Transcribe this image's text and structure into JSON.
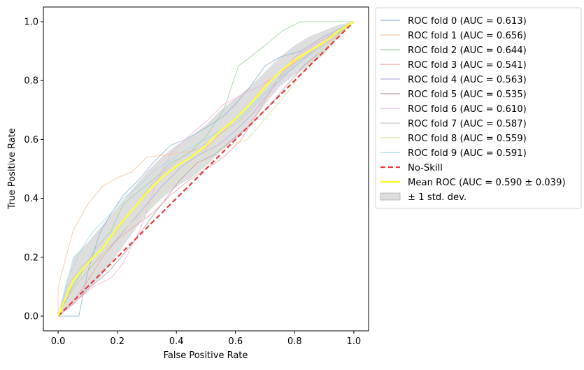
{
  "chart_data": {
    "type": "line",
    "title": "",
    "xlabel": "False Positive Rate",
    "ylabel": "True Positive Rate",
    "xlim": [
      -0.05,
      1.05
    ],
    "ylim": [
      -0.05,
      1.05
    ],
    "xticks": [
      0.0,
      0.2,
      0.4,
      0.6,
      0.8,
      1.0
    ],
    "yticks": [
      0.0,
      0.2,
      0.4,
      0.6,
      0.8,
      1.0
    ],
    "tick_labels_x": [
      "0.0",
      "0.2",
      "0.4",
      "0.6",
      "0.8",
      "1.0"
    ],
    "tick_labels_y": [
      "0.0",
      "0.2",
      "0.4",
      "0.6",
      "0.8",
      "1.0"
    ],
    "grid": false,
    "legend_position": "outside-right",
    "series": [
      {
        "name": "ROC fold 0 (AUC = 0.613)",
        "color": "#8fb6d6",
        "x": [
          0,
          0.02,
          0.07,
          0.1,
          0.14,
          0.18,
          0.22,
          0.27,
          0.32,
          0.38,
          0.43,
          0.5,
          0.56,
          0.6,
          0.65,
          0.7,
          0.75,
          0.82,
          0.9,
          1.0
        ],
        "y": [
          0,
          0,
          0,
          0.15,
          0.28,
          0.35,
          0.41,
          0.46,
          0.52,
          0.58,
          0.6,
          0.64,
          0.68,
          0.72,
          0.78,
          0.85,
          0.88,
          0.9,
          0.95,
          1.0
        ]
      },
      {
        "name": "ROC fold 1 (AUC = 0.656)",
        "color": "#fbc29a",
        "x": [
          0,
          0.0,
          0.05,
          0.1,
          0.15,
          0.2,
          0.25,
          0.3,
          0.38,
          0.45,
          0.5,
          0.55,
          0.6,
          0.65,
          0.7,
          0.78,
          0.85,
          0.93,
          1.0
        ],
        "y": [
          0,
          0.1,
          0.29,
          0.38,
          0.44,
          0.47,
          0.49,
          0.54,
          0.55,
          0.56,
          0.57,
          0.62,
          0.67,
          0.72,
          0.79,
          0.85,
          0.9,
          0.94,
          1.0
        ]
      },
      {
        "name": "ROC fold 2 (AUC = 0.644)",
        "color": "#9ed39e",
        "x": [
          0,
          0.03,
          0.08,
          0.12,
          0.18,
          0.22,
          0.28,
          0.33,
          0.38,
          0.44,
          0.5,
          0.56,
          0.61,
          0.65,
          0.7,
          0.76,
          0.82,
          0.88,
          1.0
        ],
        "y": [
          0,
          0.07,
          0.15,
          0.22,
          0.29,
          0.38,
          0.43,
          0.47,
          0.52,
          0.55,
          0.61,
          0.7,
          0.85,
          0.88,
          0.92,
          0.97,
          1.0,
          1.0,
          1.0
        ]
      },
      {
        "name": "ROC fold 3 (AUC = 0.541)",
        "color": "#f3a3a3",
        "x": [
          0,
          0.05,
          0.1,
          0.15,
          0.2,
          0.25,
          0.32,
          0.38,
          0.44,
          0.5,
          0.56,
          0.62,
          0.68,
          0.74,
          0.8,
          0.88,
          0.95,
          1.0
        ],
        "y": [
          0,
          0.05,
          0.12,
          0.2,
          0.26,
          0.3,
          0.35,
          0.41,
          0.46,
          0.5,
          0.54,
          0.6,
          0.7,
          0.8,
          0.88,
          0.93,
          0.97,
          1.0
        ]
      },
      {
        "name": "ROC fold 4 (AUC = 0.563)",
        "color": "#b5b0e0",
        "x": [
          0,
          0.04,
          0.09,
          0.14,
          0.19,
          0.24,
          0.3,
          0.35,
          0.42,
          0.48,
          0.54,
          0.6,
          0.66,
          0.72,
          0.78,
          0.85,
          0.92,
          1.0
        ],
        "y": [
          0,
          0.08,
          0.14,
          0.2,
          0.25,
          0.31,
          0.38,
          0.44,
          0.51,
          0.55,
          0.58,
          0.63,
          0.69,
          0.77,
          0.83,
          0.89,
          0.95,
          1.0
        ]
      },
      {
        "name": "ROC fold 5 (AUC = 0.535)",
        "color": "#b5a0a8",
        "x": [
          0,
          0.05,
          0.11,
          0.17,
          0.23,
          0.29,
          0.35,
          0.41,
          0.47,
          0.53,
          0.59,
          0.65,
          0.71,
          0.77,
          0.83,
          0.89,
          0.95,
          1.0
        ],
        "y": [
          0,
          0.04,
          0.1,
          0.15,
          0.22,
          0.3,
          0.38,
          0.46,
          0.52,
          0.55,
          0.6,
          0.65,
          0.71,
          0.78,
          0.85,
          0.9,
          0.96,
          1.0
        ]
      },
      {
        "name": "ROC fold 6 (AUC = 0.610)",
        "color": "#f2b5da",
        "x": [
          0,
          0.06,
          0.12,
          0.18,
          0.22,
          0.28,
          0.33,
          0.38,
          0.44,
          0.5,
          0.56,
          0.62,
          0.68,
          0.74,
          0.8,
          0.87,
          0.94,
          1.0
        ],
        "y": [
          0,
          0.05,
          0.1,
          0.13,
          0.18,
          0.3,
          0.45,
          0.55,
          0.61,
          0.66,
          0.72,
          0.75,
          0.78,
          0.82,
          0.86,
          0.9,
          0.95,
          1.0
        ]
      },
      {
        "name": "ROC fold 7 (AUC = 0.587)",
        "color": "#c8c8c8",
        "x": [
          0,
          0.03,
          0.08,
          0.13,
          0.19,
          0.25,
          0.31,
          0.37,
          0.43,
          0.49,
          0.55,
          0.61,
          0.67,
          0.73,
          0.79,
          0.86,
          0.93,
          1.0
        ],
        "y": [
          0,
          0.1,
          0.17,
          0.21,
          0.28,
          0.36,
          0.44,
          0.5,
          0.55,
          0.58,
          0.62,
          0.66,
          0.72,
          0.79,
          0.85,
          0.9,
          0.95,
          1.0
        ]
      },
      {
        "name": "ROC fold 8 (AUC = 0.559)",
        "color": "#dce3a0",
        "x": [
          0,
          0.05,
          0.1,
          0.16,
          0.22,
          0.28,
          0.34,
          0.4,
          0.46,
          0.52,
          0.58,
          0.64,
          0.7,
          0.76,
          0.82,
          0.88,
          0.94,
          1.0
        ],
        "y": [
          0,
          0.09,
          0.15,
          0.22,
          0.29,
          0.35,
          0.41,
          0.47,
          0.52,
          0.56,
          0.58,
          0.6,
          0.67,
          0.74,
          0.82,
          0.89,
          0.95,
          1.0
        ]
      },
      {
        "name": "ROC fold 9 (AUC = 0.591)",
        "color": "#9edde8",
        "x": [
          0,
          0.03,
          0.08,
          0.12,
          0.17,
          0.22,
          0.27,
          0.32,
          0.38,
          0.44,
          0.5,
          0.56,
          0.62,
          0.68,
          0.74,
          0.8,
          0.87,
          0.93,
          1.0
        ],
        "y": [
          0,
          0.12,
          0.23,
          0.29,
          0.34,
          0.4,
          0.44,
          0.49,
          0.53,
          0.57,
          0.6,
          0.64,
          0.68,
          0.74,
          0.8,
          0.85,
          0.9,
          0.95,
          1.0
        ]
      },
      {
        "name": "No-Skill",
        "color": "#e8393a",
        "dashed": true,
        "x": [
          0,
          1
        ],
        "y": [
          0,
          1
        ]
      },
      {
        "name": "Mean ROC (AUC = 0.590 ± 0.039)",
        "color": "#ffff33",
        "x": [
          0,
          0.02,
          0.05,
          0.1,
          0.15,
          0.2,
          0.25,
          0.3,
          0.35,
          0.4,
          0.45,
          0.5,
          0.55,
          0.6,
          0.65,
          0.7,
          0.75,
          0.8,
          0.85,
          0.9,
          0.95,
          1.0
        ],
        "y": [
          0,
          0.05,
          0.12,
          0.18,
          0.23,
          0.3,
          0.36,
          0.42,
          0.47,
          0.51,
          0.54,
          0.58,
          0.63,
          0.67,
          0.72,
          0.78,
          0.83,
          0.87,
          0.9,
          0.93,
          0.97,
          1.0
        ]
      }
    ],
    "std_band": {
      "name": "± 1 std. dev.",
      "color": "#bdbdbd",
      "x": [
        0,
        0.05,
        0.1,
        0.15,
        0.2,
        0.25,
        0.3,
        0.35,
        0.4,
        0.45,
        0.5,
        0.55,
        0.6,
        0.65,
        0.7,
        0.75,
        0.8,
        0.85,
        0.9,
        0.95,
        1.0
      ],
      "upper": [
        0,
        0.2,
        0.25,
        0.31,
        0.37,
        0.43,
        0.49,
        0.54,
        0.58,
        0.61,
        0.65,
        0.7,
        0.74,
        0.78,
        0.83,
        0.88,
        0.92,
        0.95,
        0.97,
        0.99,
        1.0
      ],
      "lower": [
        0,
        0.04,
        0.09,
        0.14,
        0.21,
        0.28,
        0.35,
        0.4,
        0.44,
        0.47,
        0.51,
        0.56,
        0.6,
        0.65,
        0.72,
        0.78,
        0.82,
        0.85,
        0.89,
        0.95,
        1.0
      ]
    }
  }
}
